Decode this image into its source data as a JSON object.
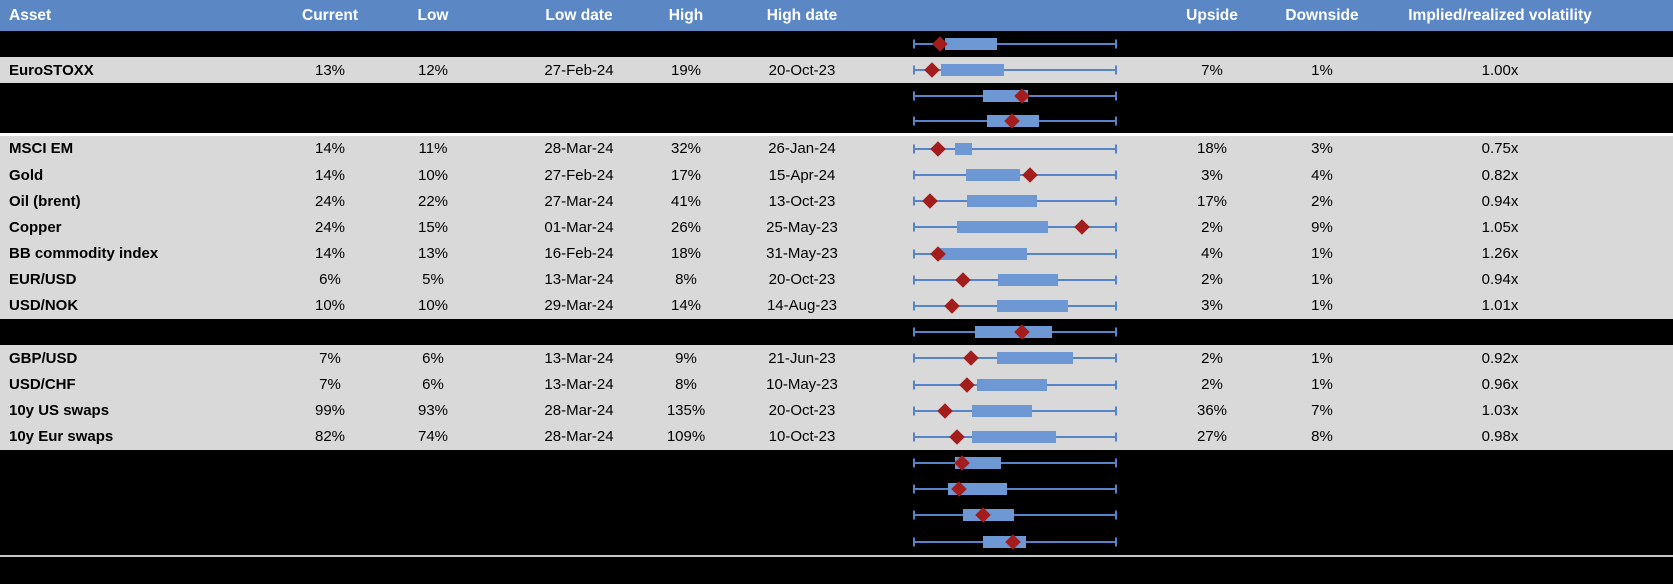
{
  "colors": {
    "header_bg": "#5b87c5",
    "header_text": "#ffffff",
    "row_gray": "#d9d9d9",
    "whisker_blue": "#5584c8",
    "box_blue": "#6d98d3",
    "marker_red": "#a31d1d",
    "separator_white": "#ffffff",
    "separator_silver": "#c8c8c8"
  },
  "columns": [
    {
      "id": "asset",
      "label": "Asset"
    },
    {
      "id": "current",
      "label": "Current"
    },
    {
      "id": "low",
      "label": "Low"
    },
    {
      "id": "low_date",
      "label": "Low date"
    },
    {
      "id": "high",
      "label": "High"
    },
    {
      "id": "high_date",
      "label": "High date"
    },
    {
      "id": "upside",
      "label": "Upside"
    },
    {
      "id": "downside",
      "label": "Downside"
    },
    {
      "id": "vol",
      "label": "Implied/realized volatility"
    }
  ],
  "chart_data": {
    "type": "table",
    "title": "",
    "boxplot_scale": "Each row has a box-and-whisker plot; whiskers span the full plot width (normalized 0-1), box and diamond marker positions given as fractions of that width",
    "columns": [
      "Asset",
      "Current",
      "Low",
      "Low date",
      "High",
      "High date",
      "Upside",
      "Downside",
      "Implied/realized volatility"
    ],
    "rows": [
      {
        "type": "spacer",
        "boxplot": {
          "whisker": [
            0,
            1
          ],
          "box": [
            0.157,
            0.412
          ],
          "marker": 0.132
        }
      },
      {
        "type": "data",
        "asset": "EuroSTOXX",
        "current": "13%",
        "low": "12%",
        "low_date": "27-Feb-24",
        "high": "19%",
        "high_date": "20-Oct-23",
        "upside": "7%",
        "downside": "1%",
        "vol": "1.00x",
        "boxplot": {
          "whisker": [
            0,
            1
          ],
          "box": [
            0.137,
            0.446
          ],
          "marker": 0.091
        }
      },
      {
        "type": "spacer",
        "boxplot": {
          "whisker": [
            0,
            1
          ],
          "box": [
            0.343,
            0.564
          ],
          "marker": 0.534
        }
      },
      {
        "type": "spacer",
        "separator_below": true,
        "boxplot": {
          "whisker": [
            0,
            1
          ],
          "box": [
            0.363,
            0.618
          ],
          "marker": 0.483
        }
      },
      {
        "type": "data",
        "asset": "MSCI EM",
        "current": "14%",
        "low": "11%",
        "low_date": "28-Mar-24",
        "high": "32%",
        "high_date": "26-Jan-24",
        "upside": "18%",
        "downside": "3%",
        "vol": "0.75x",
        "boxplot": {
          "whisker": [
            0,
            1
          ],
          "box": [
            0.206,
            0.291
          ],
          "marker": 0.121
        }
      },
      {
        "type": "data",
        "asset": "Gold",
        "current": "14%",
        "low": "10%",
        "low_date": "27-Feb-24",
        "high": "17%",
        "high_date": "15-Apr-24",
        "upside": "3%",
        "downside": "4%",
        "vol": "0.82x",
        "boxplot": {
          "whisker": [
            0,
            1
          ],
          "box": [
            0.26,
            0.525
          ],
          "marker": 0.574
        }
      },
      {
        "type": "data",
        "asset": "Oil (brent)",
        "current": "24%",
        "low": "22%",
        "low_date": "27-Mar-24",
        "high": "41%",
        "high_date": "13-Oct-23",
        "upside": "17%",
        "downside": "2%",
        "vol": "0.94x",
        "boxplot": {
          "whisker": [
            0,
            1
          ],
          "box": [
            0.263,
            0.606
          ],
          "marker": 0.083
        }
      },
      {
        "type": "data",
        "asset": "Copper",
        "current": "24%",
        "low": "15%",
        "low_date": "01-Mar-24",
        "high": "26%",
        "high_date": "25-May-23",
        "upside": "2%",
        "downside": "9%",
        "vol": "1.05x",
        "boxplot": {
          "whisker": [
            0,
            1
          ],
          "box": [
            0.217,
            0.663
          ],
          "marker": 0.827
        }
      },
      {
        "type": "data",
        "asset": "BB commodity index",
        "current": "14%",
        "low": "13%",
        "low_date": "16-Feb-24",
        "high": "18%",
        "high_date": "31-May-23",
        "upside": "4%",
        "downside": "1%",
        "vol": "1.26x",
        "boxplot": {
          "whisker": [
            0,
            1
          ],
          "box": [
            0.132,
            0.557
          ],
          "marker": 0.121
        }
      },
      {
        "type": "data",
        "asset": "EUR/USD",
        "current": "6%",
        "low": "5%",
        "low_date": "13-Mar-24",
        "high": "8%",
        "high_date": "20-Oct-23",
        "upside": "2%",
        "downside": "1%",
        "vol": "0.94x",
        "boxplot": {
          "whisker": [
            0,
            1
          ],
          "box": [
            0.418,
            0.712
          ],
          "marker": 0.244
        }
      },
      {
        "type": "data",
        "asset": "USD/NOK",
        "current": "10%",
        "low": "10%",
        "low_date": "29-Mar-24",
        "high": "14%",
        "high_date": "14-Aug-23",
        "upside": "3%",
        "downside": "1%",
        "vol": "1.01x",
        "boxplot": {
          "whisker": [
            0,
            1
          ],
          "box": [
            0.41,
            0.761
          ],
          "marker": 0.193
        }
      },
      {
        "type": "spacer",
        "boxplot": {
          "whisker": [
            0,
            1
          ],
          "box": [
            0.304,
            0.683
          ],
          "marker": 0.533
        }
      },
      {
        "type": "data",
        "asset": "GBP/USD",
        "current": "7%",
        "low": "6%",
        "low_date": "13-Mar-24",
        "high": "9%",
        "high_date": "21-Jun-23",
        "upside": "2%",
        "downside": "1%",
        "vol": "0.92x",
        "boxplot": {
          "whisker": [
            0,
            1
          ],
          "box": [
            0.413,
            0.786
          ],
          "marker": 0.283
        }
      },
      {
        "type": "data",
        "asset": "USD/CHF",
        "current": "7%",
        "low": "6%",
        "low_date": "13-Mar-24",
        "high": "8%",
        "high_date": "10-May-23",
        "upside": "2%",
        "downside": "1%",
        "vol": "0.96x",
        "boxplot": {
          "whisker": [
            0,
            1
          ],
          "box": [
            0.315,
            0.655
          ],
          "marker": 0.263
        }
      },
      {
        "type": "data",
        "asset": "10y US swaps",
        "current": "99%",
        "low": "93%",
        "low_date": "28-Mar-24",
        "high": "135%",
        "high_date": "20-Oct-23",
        "upside": "36%",
        "downside": "7%",
        "vol": "1.03x",
        "boxplot": {
          "whisker": [
            0,
            1
          ],
          "box": [
            0.288,
            0.585
          ],
          "marker": 0.157
        }
      },
      {
        "type": "data",
        "asset": "10y Eur swaps",
        "current": "82%",
        "low": "74%",
        "low_date": "28-Mar-24",
        "high": "109%",
        "high_date": "10-Oct-23",
        "upside": "27%",
        "downside": "8%",
        "vol": "0.98x",
        "boxplot": {
          "whisker": [
            0,
            1
          ],
          "box": [
            0.288,
            0.7
          ],
          "marker": 0.217
        }
      },
      {
        "type": "spacer",
        "boxplot": {
          "whisker": [
            0,
            1
          ],
          "box": [
            0.206,
            0.431
          ],
          "marker": 0.24
        }
      },
      {
        "type": "spacer",
        "boxplot": {
          "whisker": [
            0,
            1
          ],
          "box": [
            0.173,
            0.462
          ],
          "marker": 0.227
        }
      },
      {
        "type": "spacer",
        "boxplot": {
          "whisker": [
            0,
            1
          ],
          "box": [
            0.244,
            0.495
          ],
          "marker": 0.345
        }
      },
      {
        "type": "spacer",
        "boxplot": {
          "whisker": [
            0,
            1
          ],
          "box": [
            0.345,
            0.552
          ],
          "marker": 0.492
        }
      }
    ]
  }
}
